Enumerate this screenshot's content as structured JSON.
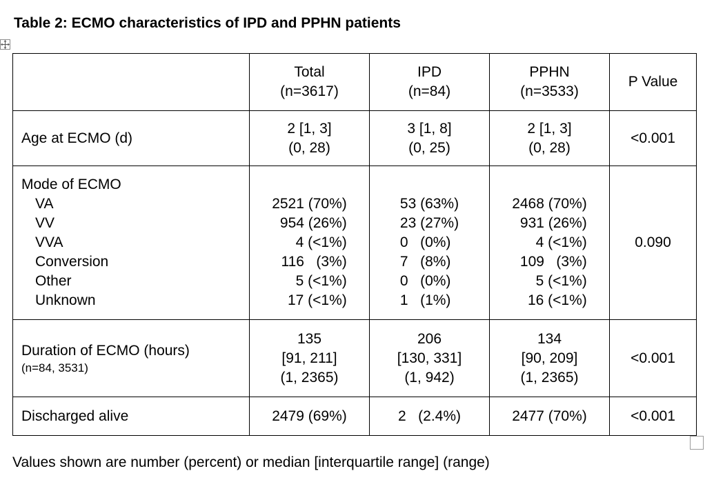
{
  "title": "Table 2: ECMO characteristics of IPD and PPHN patients",
  "header": {
    "total": [
      "Total",
      "(n=3617)"
    ],
    "ipd": [
      "IPD",
      "(n=84)"
    ],
    "pphn": [
      "PPHN",
      "(n=3533)"
    ],
    "pvalue": "P Value"
  },
  "rows": {
    "age": {
      "label": "Age at ECMO (d)",
      "total": [
        "2 [1, 3]",
        "(0, 28)"
      ],
      "ipd": [
        "3 [1, 8]",
        "(0, 25)"
      ],
      "pphn": [
        "2 [1, 3]",
        "(0, 28)"
      ],
      "p": "<0.001"
    },
    "mode": {
      "label": "Mode of ECMO",
      "sublabels": [
        "VA",
        "VV",
        "VVA",
        "Conversion",
        "Other",
        "Unknown"
      ],
      "total": [
        "2521 (70%)",
        "954 (26%)",
        "4 (<1%)",
        "116   (3%)",
        "5 (<1%)",
        "17 (<1%)"
      ],
      "ipd": [
        "53 (63%)",
        "23 (27%)",
        "0   (0%)",
        "7   (8%)",
        "0   (0%)",
        "1   (1%)"
      ],
      "pphn": [
        "2468 (70%)",
        "931 (26%)",
        "4 (<1%)",
        "109   (3%)",
        "5 (<1%)",
        "16 (<1%)"
      ],
      "p": "0.090"
    },
    "duration": {
      "label": "Duration of ECMO (hours)",
      "sublabel": "(n=84, 3531)",
      "total": [
        "135",
        "[91, 211]",
        "(1, 2365)"
      ],
      "ipd": [
        "206",
        "[130, 331]",
        "(1, 942)"
      ],
      "pphn": [
        "134",
        "[90, 209]",
        "(1, 2365)"
      ],
      "p": "<0.001"
    },
    "discharged": {
      "label": "Discharged alive",
      "total": "2479 (69%)",
      "ipd": "2   (2.4%)",
      "pphn": "2477 (70%)",
      "p": "<0.001"
    }
  },
  "footnote": "Values shown are number (percent) or median [interquartile range] (range)"
}
